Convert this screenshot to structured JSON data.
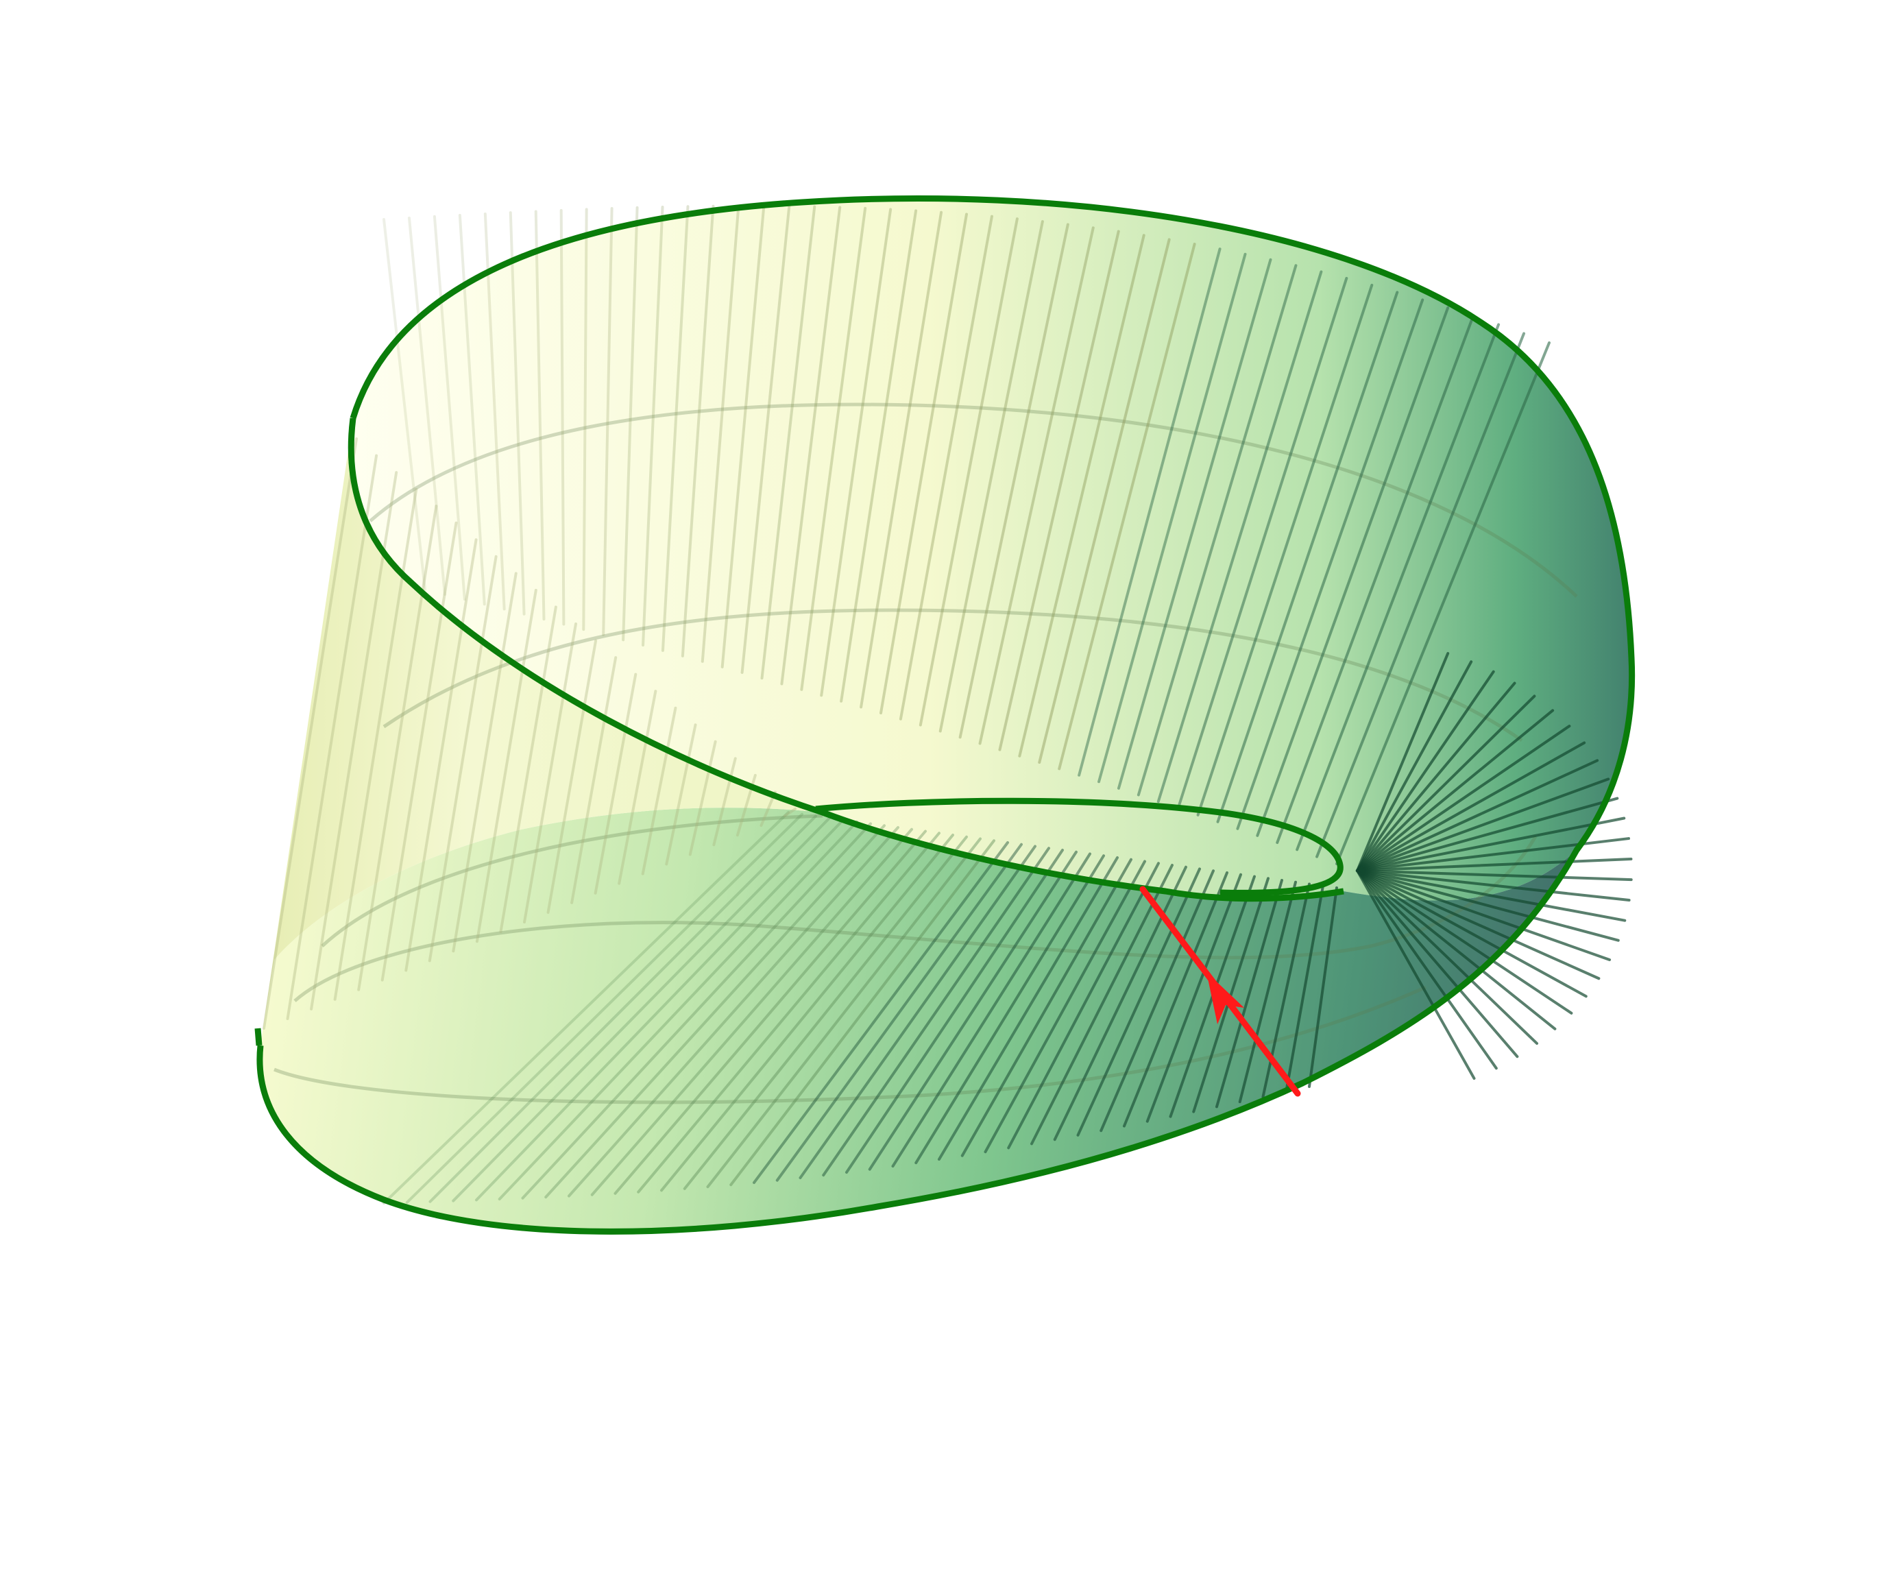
{
  "diagram": {
    "subject": "mobius-strip",
    "colors": {
      "background": "#ffffff",
      "edge": "#0a7d0a",
      "path_arrow": "#ff1a1a",
      "shade_light": "#fffff2",
      "shade_mid": "#8fd197",
      "shade_dark": "#3d6a66"
    },
    "arrow_direction": "up-left"
  }
}
